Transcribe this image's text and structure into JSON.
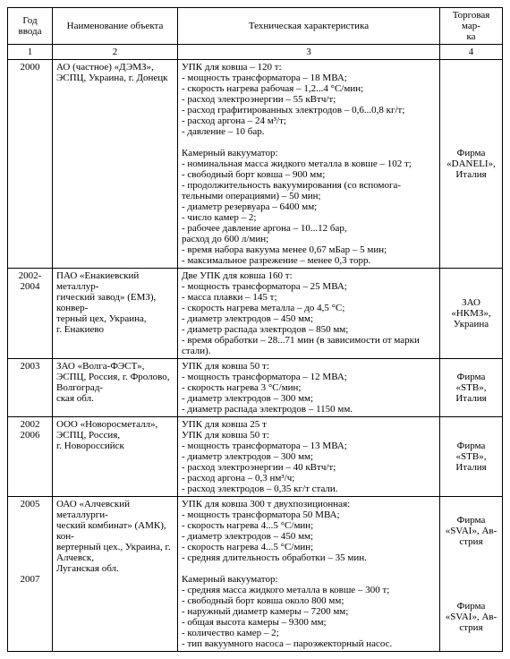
{
  "table": {
    "headers": {
      "c1": "Год ввода",
      "c2": "Наименование объекта",
      "c3": "Техническая характеристика",
      "c4": "Торговая мар-\nка"
    },
    "numrow": {
      "c1": "1",
      "c2": "2",
      "c3": "3",
      "c4": "4"
    },
    "rows": [
      {
        "year": "2000",
        "name": "АО (частное) «ДЭМЗ», ЭСПЦ, Украина, г. Донецк",
        "tech": "УПК для ковша – 120 т:\n- мощность трансформатора – 18 МВА;\n- скорость нагрева рабочая – 1,2...4 °С/мин;\n- расход электроэнергии – 55 кВтч/т;\n- расход графитированных электродов – 0,6...0,8 кг/т;\n- расход аргона – 24 м³/т;\n- давление – 10 бар.\n\nКамерный вакууматор:\n- номинальная масса жидкого металла в ковше – 102 т;\n- свободный борт ковша – 900 мм;\n- продолжительность вакуумирования (со вспомога-\nтельными операциями) – 50 мин;\n- диаметр резервуара – 6400 мм;\n- число камер – 2;\n- рабочее давление аргона – 10...12 бар,\nрасход до 600 л/мин;\n- время набора вакуума менее 0,67 мБар – 5 мин;\n- максимальное разрежение – менее 0,3 торр.",
        "brand": "Фирма «DANELI», Италия"
      },
      {
        "year": "2002-2004",
        "name": "ПАО «Енакиевский металлур-\nгический завод» (ЕМЗ), конвер-\nтерный цех, Украина,\nг. Енакиево",
        "tech": "Две УПК для ковша 160 т:\n- мощность трансформатора – 25 МВА;\n- масса плавки – 145 т;\n- скорость нагрева металла – до 4,5 °С;\n- диаметр электродов – 450 мм;\n- диаметр распада электродов – 850 мм;\n- время обработки – 28...71 мин (в зависимости от марки стали).",
        "brand": "ЗАО «НКМЗ», Украина"
      },
      {
        "year": "2003",
        "name": "ЗАО «Волга-ФЭСТ», ЭСПЦ, Россия, г. Фролово, Волгоград-\nская обл.",
        "tech": "УПК для ковша 50 т:\n- мощность трансформатора – 12 МВА;\n- скорость нагрева 3 °С/мин;\n- диаметр электродов – 300 мм;\n- диаметр распада электродов – 1150 мм.",
        "brand": "Фирма «STB», Италия"
      },
      {
        "year": "2002\n2006",
        "name": "ООО «Новоросметалл», ЭСПЦ, Россия,\nг. Новороссийск",
        "tech": "УПК для ковша 25 т\nУПК для ковша 50 т:\n- мощность трансформатора – 13 МВА;\n- диаметр электродов – 300 мм;\n- расход электроэнергии – 40 кВтч/т;\n- расход аргона – 0,3 нм³/ч;\n- расход электродов – 0,35 кг/т стали.",
        "brand": "Фирма «STB», Италия"
      },
      {
        "year": "2005\n\n\n\n\n\n\n2007",
        "name": "ОАО «Алчевский металлурги-\nческий комбинат» (АМК), кон-\nвертерный цех., Украина, г. Алчевск,\nЛуганская обл.",
        "tech": "УПК для ковша 300 т двухпозиционная:\n- мощность трансформатора 50 МВА;\n- скорость нагрева 4...5 °С/мин;\n- диаметр электродов – 450 мм;\n- скорость нагрева 4...5 °С/мин;\n- средняя длительность обработки – 35 мин.\n\nКамерный вакууматор:\n- средняя масса жидкого металла в ковше – 300 т;\n- свободный борт ковша около 800 мм;\n- наружный диаметр камеры – 7200 мм;\n- общая высота камеры – 9300 мм;\n- количество камер – 2;\n- тип вакуумного насоса – пароэжекторный насос.",
        "brand": "Фирма «SVAI», Ав-\nстрия\n\n\n\n\n\nФирма «SVAI», Ав-\nстрия"
      }
    ]
  }
}
